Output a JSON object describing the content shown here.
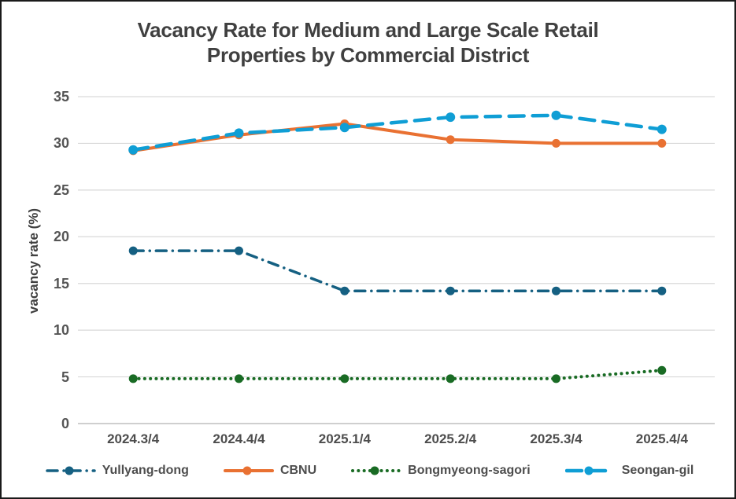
{
  "frame": {
    "background": "#ffffff",
    "border_color": "#1a1a1a"
  },
  "chart_data": {
    "type": "line",
    "title": "Vacancy Rate for Medium and Large Scale Retail Properties by Commercial District",
    "xlabel": "",
    "ylabel": "vacancy rate (%)",
    "ylim": [
      0,
      35
    ],
    "yticks": [
      0,
      5,
      10,
      15,
      20,
      25,
      30,
      35
    ],
    "grid": true,
    "gridline_color": "#D9D9D9",
    "axis_line_color": "#BFBFBF",
    "title_color": "#404040",
    "label_color": "#4d4d4d",
    "legend_position": "bottom",
    "categories": [
      "2024.3/4",
      "2024.4/4",
      "2025.1/4",
      "2025.2/4",
      "2025.3/4",
      "2025.4/4"
    ],
    "series": [
      {
        "name": "Yullyang-dong",
        "color": "#156082",
        "dash": "dash-dot",
        "values": [
          18.5,
          18.5,
          14.2,
          14.2,
          14.2,
          14.2
        ]
      },
      {
        "name": "CBNU",
        "color": "#E97132",
        "dash": "solid",
        "values": [
          29.2,
          30.9,
          32.1,
          30.4,
          30.0,
          30.0
        ]
      },
      {
        "name": "Bongmyeong-sagori",
        "color": "#196B24",
        "dash": "dotted",
        "values": [
          4.8,
          4.8,
          4.8,
          4.8,
          4.8,
          5.7
        ]
      },
      {
        "name": "Seongan-gil",
        "color": "#0F9ED5",
        "dash": "long-dash",
        "values": [
          29.3,
          31.1,
          31.7,
          32.8,
          33.0,
          31.5
        ]
      }
    ]
  }
}
